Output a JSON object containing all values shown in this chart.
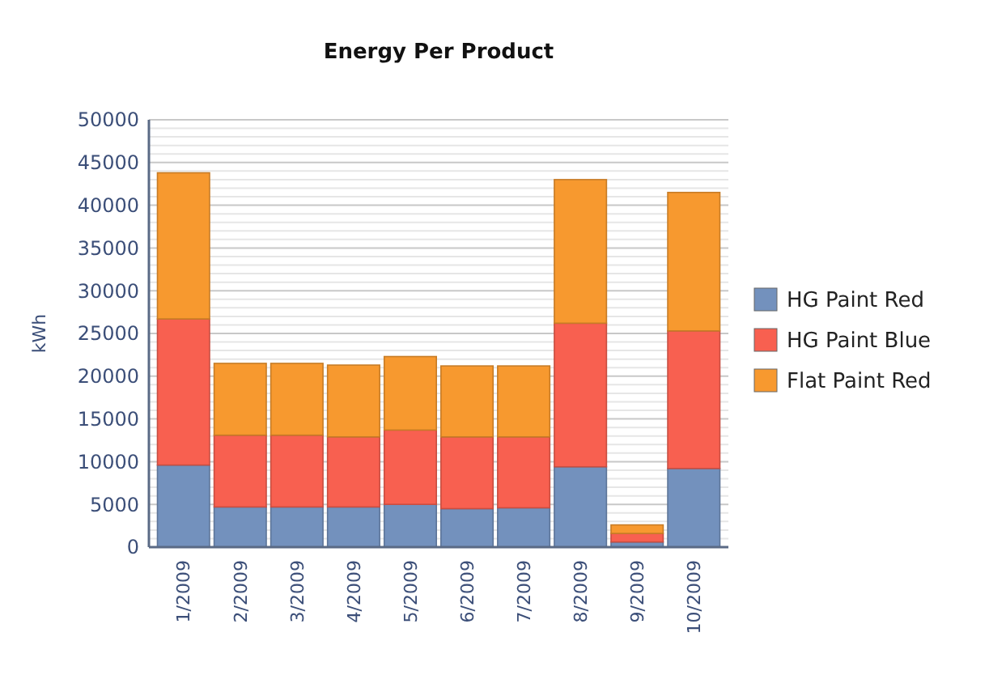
{
  "chart_data": {
    "type": "bar",
    "title": "Energy Per Product",
    "ylabel": "kWh",
    "stacked": true,
    "categories": [
      "1/2009",
      "2/2009",
      "3/2009",
      "4/2009",
      "5/2009",
      "6/2009",
      "7/2009",
      "8/2009",
      "9/2009",
      "10/2009"
    ],
    "series": [
      {
        "name": "HG Paint Red",
        "color": "#7391bd",
        "values": [
          9600,
          4700,
          4700,
          4700,
          5000,
          4500,
          4600,
          9400,
          600,
          9200
        ]
      },
      {
        "name": "HG Paint Blue",
        "color": "#f86050",
        "values": [
          17100,
          8400,
          8400,
          8200,
          8700,
          8400,
          8300,
          16800,
          1000,
          16100
        ]
      },
      {
        "name": "Flat Paint Red",
        "color": "#f7992f",
        "values": [
          17100,
          8400,
          8400,
          8400,
          8600,
          8300,
          8300,
          16800,
          1000,
          16200
        ]
      }
    ],
    "ylim": [
      0,
      50000
    ],
    "yticks": [
      0,
      {
        "value": 1000,
        "label": null
      },
      {
        "value": 2000,
        "label": null
      },
      {
        "value": 3000,
        "label": null
      },
      {
        "value": 4000,
        "label": null
      },
      5000,
      {
        "value": 6000,
        "label": null
      },
      {
        "value": 7000,
        "label": null
      },
      {
        "value": 8000,
        "label": null
      },
      {
        "value": 9000,
        "label": null
      },
      10000,
      {
        "value": 11000,
        "label": null
      },
      {
        "value": 12000,
        "label": null
      },
      {
        "value": 13000,
        "label": null
      },
      {
        "value": 14000,
        "label": null
      },
      15000,
      {
        "value": 16000,
        "label": null
      },
      {
        "value": 17000,
        "label": null
      },
      {
        "value": 18000,
        "label": null
      },
      {
        "value": 19000,
        "label": null
      },
      20000,
      {
        "value": 21000,
        "label": null
      },
      {
        "value": 22000,
        "label": null
      },
      {
        "value": 23000,
        "label": null
      },
      {
        "value": 24000,
        "label": null
      },
      25000,
      {
        "value": 26000,
        "label": null
      },
      {
        "value": 27000,
        "label": null
      },
      {
        "value": 28000,
        "label": null
      },
      {
        "value": 29000,
        "label": null
      },
      30000,
      {
        "value": 31000,
        "label": null
      },
      {
        "value": 32000,
        "label": null
      },
      {
        "value": 33000,
        "label": null
      },
      {
        "value": 34000,
        "label": null
      },
      35000,
      {
        "value": 36000,
        "label": null
      },
      {
        "value": 37000,
        "label": null
      },
      {
        "value": 38000,
        "label": null
      },
      {
        "value": 39000,
        "label": null
      },
      40000,
      {
        "value": 41000,
        "label": null
      },
      {
        "value": 42000,
        "label": null
      },
      {
        "value": 43000,
        "label": null
      },
      {
        "value": 44000,
        "label": null
      },
      45000,
      {
        "value": 46000,
        "label": null
      },
      {
        "value": 47000,
        "label": null
      },
      {
        "value": 48000,
        "label": null
      },
      {
        "value": 49000,
        "label": null
      },
      50000
    ],
    "grid": "y",
    "legend": "right"
  }
}
